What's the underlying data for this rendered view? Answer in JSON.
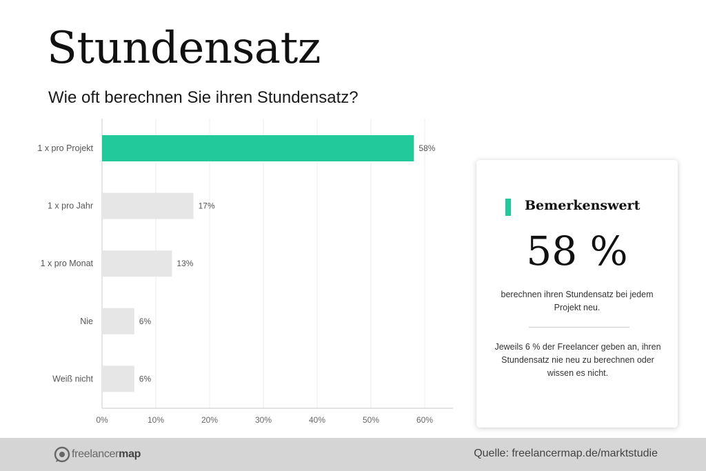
{
  "header": {
    "title": "Stundensatz",
    "subtitle": "Wie oft berechnen Sie ihren Stundensatz?"
  },
  "colors": {
    "accent": "#21c99b",
    "bar_default": "#e6e6e6",
    "footer_bg": "#d5d5d5"
  },
  "chart_data": {
    "type": "bar",
    "orientation": "horizontal",
    "categories": [
      "1 x pro Projekt",
      "1 x pro Jahr",
      "1 x pro Monat",
      "Nie",
      "Weiß nicht"
    ],
    "values": [
      58,
      17,
      13,
      6,
      6
    ],
    "value_labels": [
      "58%",
      "17%",
      "13%",
      "6%",
      "6%"
    ],
    "highlight_index": 0,
    "xticks": [
      0,
      10,
      20,
      30,
      40,
      50,
      60
    ],
    "xtick_labels": [
      "0%",
      "10%",
      "20%",
      "30%",
      "40%",
      "50%",
      "60%"
    ],
    "xlim": [
      0,
      65
    ],
    "grid": true,
    "title": "",
    "xlabel": "",
    "ylabel": ""
  },
  "card": {
    "title": "Bemerkenswert",
    "big_value": "58 %",
    "description": "berechnen ihren Stundensatz bei jedem Projekt neu.",
    "note": "Jeweils 6 % der Freelancer geben an, ihren Stundensatz nie neu zu berechnen oder wissen es nicht."
  },
  "footer": {
    "logo_text_light": "freelancer",
    "logo_text_bold": "map",
    "logo_icon": "chat-bubble-icon",
    "source": "Quelle: freelancermap.de/marktstudie"
  }
}
